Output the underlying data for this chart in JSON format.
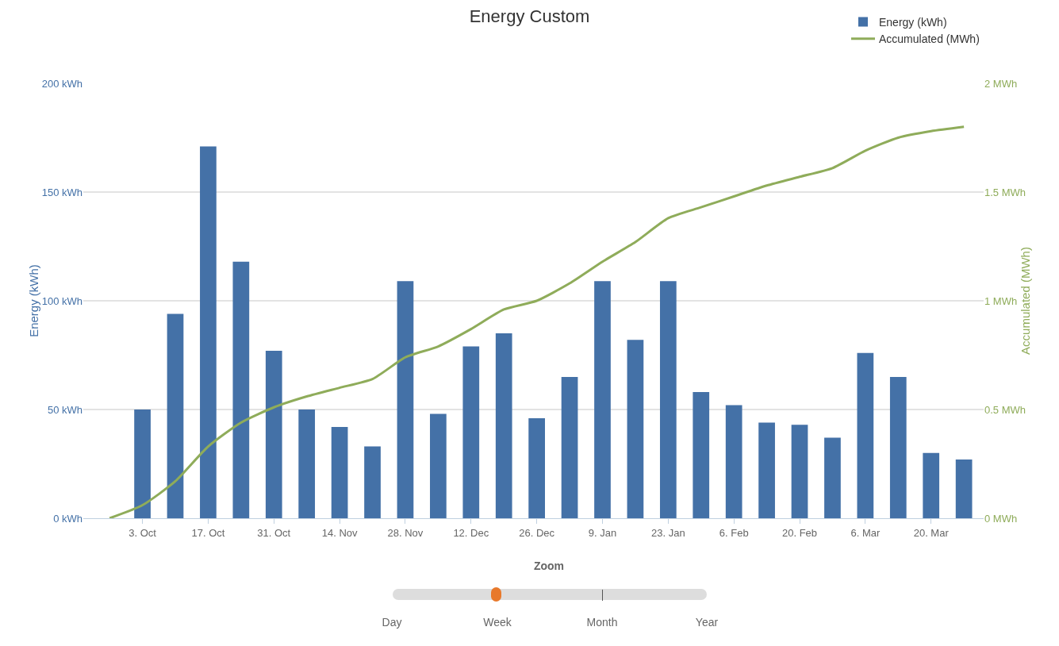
{
  "chart_data": {
    "type": "bar",
    "title": "Energy Custom",
    "ylabel": "Energy (kWh)",
    "y2label": "Accumulated (MWh)",
    "categories": [
      null,
      "3. Oct",
      null,
      "17. Oct",
      null,
      "31. Oct",
      null,
      "14. Nov",
      null,
      "28. Nov",
      null,
      "12. Dec",
      null,
      "26. Dec",
      null,
      "9. Jan",
      null,
      "23. Jan",
      null,
      "6. Feb",
      null,
      "20. Feb",
      null,
      "6. Mar",
      null,
      "20. Mar",
      null
    ],
    "series": [
      {
        "name": "Energy (kWh)",
        "color": "#4471a7",
        "values": [
          null,
          50,
          94,
          171,
          118,
          77,
          50,
          42,
          33,
          109,
          48,
          79,
          85,
          46,
          65,
          109,
          82,
          109,
          58,
          52,
          44,
          43,
          37,
          76,
          65,
          30,
          27
        ]
      },
      {
        "name": "Accumulated (MWh)",
        "type": "line",
        "axis": "y2",
        "color": "#8fac5a",
        "values": [
          0,
          0.06,
          0.17,
          0.33,
          0.44,
          0.51,
          0.56,
          0.6,
          0.64,
          0.74,
          0.79,
          0.87,
          0.96,
          1.0,
          1.08,
          1.18,
          1.27,
          1.38,
          1.43,
          1.48,
          1.53,
          1.57,
          1.61,
          1.69,
          1.75,
          1.78,
          1.8
        ]
      }
    ],
    "ylim": [
      0,
      200
    ],
    "yticks": [
      {
        "value": 0,
        "label": "0 kWh"
      },
      {
        "value": 50,
        "label": "50 kWh"
      },
      {
        "value": 100,
        "label": "100 kWh"
      },
      {
        "value": 150,
        "label": "150 kWh"
      },
      {
        "value": 200,
        "label": "200 kWh"
      }
    ],
    "y2lim": [
      0,
      2
    ],
    "y2ticks": [
      {
        "value": 0,
        "label": "0 MWh"
      },
      {
        "value": 0.5,
        "label": "0.5 MWh"
      },
      {
        "value": 1,
        "label": "1 MWh"
      },
      {
        "value": 1.5,
        "label": "1.5 MWh"
      },
      {
        "value": 2,
        "label": "2 MWh"
      }
    ],
    "grid": "y",
    "legend": "top right",
    "annotations": [
      "Zoom",
      "Day",
      "Week",
      "Month",
      "Year"
    ]
  }
}
